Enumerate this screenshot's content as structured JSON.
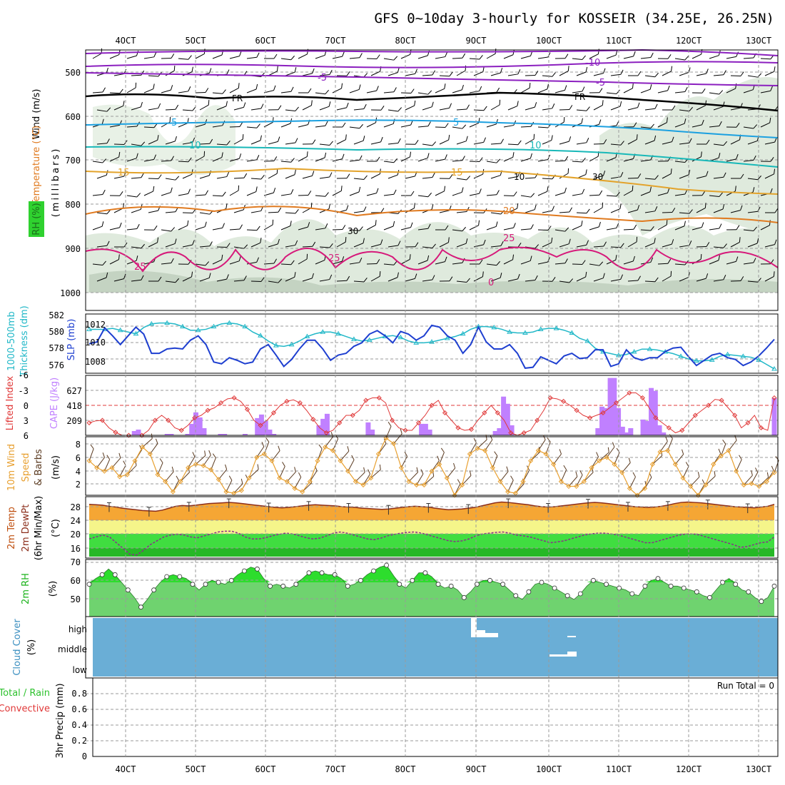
{
  "title": "GFS 0~10day 3-hourly for KOSSEIR (34.25E, 26.25N)",
  "date_ticks": [
    "4OCT",
    "5OCT",
    "6OCT",
    "7OCT",
    "8OCT",
    "9OCT",
    "10OCT",
    "11OCT",
    "12OCT",
    "13OCT"
  ],
  "colors": {
    "grid": "#9a9a9a",
    "thickness": "#22b8c8",
    "slp": "#1e3fd0",
    "lifted": "#e03838",
    "cape": "#c080ff",
    "wind": "#e8a030",
    "temp_fill": "#f5a634",
    "dew_fill": "#40dd40",
    "rh_fill": "#38d838",
    "cloud": "#6aaed6",
    "rh_label": "#1bb31b"
  },
  "panels": {
    "upper": {
      "label_wind": "Wind (m/s)",
      "label_temp": "Temperature (°C)",
      "label_rh": "RH (%)",
      "label_mb": "(millibars)",
      "yticks": [
        "500",
        "600",
        "700",
        "800",
        "900",
        "1000"
      ],
      "contour_labels": [
        "-10",
        "-5",
        "FR",
        "-5",
        "5",
        "10",
        "15",
        "20",
        "25",
        "0",
        "30",
        "10"
      ]
    },
    "slp": {
      "label_thick": "1000-500mb",
      "label_thick2": "Thickness (dm)",
      "label_slp": "SLP (mb)",
      "left_ticks": [
        "582",
        "580",
        "578",
        "576"
      ],
      "right_ticks": [
        "1012",
        "1010",
        "1008"
      ]
    },
    "cape": {
      "label_li": "Lifted Index",
      "label_cape": "CAPE (J/kg)",
      "li_ticks": [
        "-6",
        "-3",
        "0",
        "3",
        "6"
      ],
      "cape_ticks": [
        "627",
        "418",
        "209"
      ]
    },
    "wind10": {
      "label1": "10m Wind",
      "label2": "Speed",
      "label3": "& Barbs",
      "unit": "(m/s)",
      "ticks": [
        "8",
        "6",
        "4",
        "2"
      ]
    },
    "temp2m": {
      "label1": "2m Temp",
      "label2": "2m DewPt",
      "label3": "(6hr Min/Max)",
      "unit": "(°C)",
      "ticks": [
        "28",
        "24",
        "20",
        "16"
      ]
    },
    "rh2m": {
      "label": "2m RH",
      "unit": "(%)",
      "ticks": [
        "70",
        "60",
        "50"
      ]
    },
    "cloud": {
      "label": "Cloud Cover",
      "unit": "(%)",
      "levels": [
        "high",
        "middle",
        "low"
      ]
    },
    "precip": {
      "label1": "Total / Rain",
      "label2": "Convective",
      "label3": "3hr Precip (mm)",
      "run_total": "Run Total = 0",
      "ticks": [
        "0.8",
        "0.6",
        "0.4",
        "0.2",
        "0"
      ]
    }
  },
  "chart_data": [
    {
      "type": "line",
      "name": "upper-air",
      "x": [
        "4OCT",
        "5OCT",
        "6OCT",
        "7OCT",
        "8OCT",
        "9OCT",
        "10OCT",
        "11OCT",
        "12OCT",
        "13OCT"
      ],
      "ylabel": "millibars",
      "ylim": [
        450,
        1000
      ],
      "isotherms_c": [
        -10,
        -5,
        0,
        5,
        10,
        15,
        20,
        25
      ],
      "isotherm_pressure_mb": {
        "-10": 455,
        "-5": 490,
        "0": 565,
        "5": 615,
        "10": 670,
        "15": 735,
        "20": 810,
        "25": 905
      }
    },
    {
      "type": "line",
      "name": "slp-thickness",
      "series": [
        {
          "name": "1000-500mb Thickness (dm)",
          "ylim": [
            575.5,
            582
          ],
          "values": [
            580.3,
            580.3,
            580.3,
            580.4,
            580.2,
            580.0,
            579.8,
            580.5,
            580.9,
            581.0,
            581.0,
            580.9,
            580.6,
            580.2,
            580.2,
            580.3,
            580.6,
            580.9,
            581.0,
            580.9,
            580.6,
            580.0,
            579.6,
            579.0,
            578.5,
            578.4,
            578.6,
            579.0,
            579.5,
            579.8,
            580.0,
            580.0,
            579.8,
            579.5,
            579.2,
            579.0,
            579.1,
            579.3,
            579.5,
            579.6,
            579.4,
            579.0,
            578.8,
            578.8,
            578.9,
            579.1,
            579.3,
            579.5,
            579.8,
            580.3,
            580.6,
            580.6,
            580.5,
            580.3,
            580.0,
            579.9,
            579.9,
            580.0,
            580.3,
            580.4,
            580.4,
            580.2,
            579.9,
            579.3,
            579.0,
            578.2,
            577.8,
            577.6,
            577.4,
            577.5,
            577.8,
            578.1,
            578.1,
            578.0,
            577.8,
            577.6,
            577.3,
            577.0,
            576.8,
            576.8,
            576.9,
            577.3,
            577.5,
            577.4,
            577.3,
            577.2,
            576.9,
            576.4,
            575.9
          ]
        },
        {
          "name": "SLP (mb)",
          "ylim": [
            1006.8,
            1013.5
          ],
          "values": [
            1010.1,
            1010.3,
            1011.9,
            1011.0,
            1010.0,
            1011.0,
            1012.0,
            1011.2,
            1009.0,
            1009.0,
            1009.5,
            1009.6,
            1009.5,
            1010.5,
            1011.0,
            1010.0,
            1008.0,
            1007.8,
            1008.5,
            1008.2,
            1007.8,
            1008.0,
            1009.5,
            1010.0,
            1008.8,
            1007.5,
            1008.3,
            1009.5,
            1010.5,
            1010.5,
            1009.5,
            1008.2,
            1008.8,
            1009.0,
            1009.8,
            1010.2,
            1011.2,
            1011.6,
            1011.0,
            1010.2,
            1011.5,
            1011.2,
            1010.5,
            1011.0,
            1012.2,
            1012.0,
            1011.0,
            1010.5,
            1009.0,
            1010.0,
            1012.0,
            1010.3,
            1009.5,
            1009.5,
            1010.0,
            1009.0,
            1007.3,
            1007.4,
            1008.6,
            1008.2,
            1007.8,
            1008.7,
            1009.0,
            1008.4,
            1008.5,
            1009.4,
            1009.4,
            1007.5,
            1007.8,
            1009.4,
            1008.5,
            1008.2,
            1008.5,
            1008.5,
            1009.2,
            1009.6,
            1009.7,
            1008.6,
            1007.6,
            1008.2,
            1008.8,
            1009.0,
            1008.5,
            1008.3,
            1007.6,
            1008.0,
            1008.7,
            1009.6,
            1010.6
          ]
        }
      ]
    },
    {
      "type": "bar",
      "name": "lifted-index-cape",
      "series": [
        {
          "name": "Lifted Index",
          "ylim": [
            6,
            -6
          ],
          "values": [
            3.5,
            3.1,
            3.0,
            4.5,
            5.4,
            6.0,
            6.0,
            6.0,
            6.0,
            5.0,
            3.0,
            2.0,
            3.0,
            4.5,
            5.0,
            4.0,
            2.5,
            2.0,
            1.0,
            0.5,
            -0.5,
            -1.3,
            -1.5,
            -0.8,
            0.8,
            3.0,
            4.0,
            3.0,
            1.5,
            0.0,
            -0.8,
            -1.1,
            -0.5,
            1.0,
            2.8,
            4.5,
            5.5,
            5.0,
            3.5,
            2.0,
            2.0,
            1.0,
            -1.0,
            -1.5,
            -1.5,
            -0.5,
            3.0,
            4.5,
            5.0,
            5.0,
            3.5,
            2.0,
            0.0,
            -1.0,
            1.5,
            3.0,
            4.5,
            5.0,
            4.8,
            3.0,
            1.5,
            0.0,
            1.5,
            3.0,
            5.5,
            6.0,
            5.5,
            5.0,
            3.0,
            1.0,
            -1.5,
            -1.3,
            -0.8,
            0.0,
            1.0,
            2.0,
            2.5,
            2.0,
            1.5,
            0.5,
            -0.5,
            -1.5,
            -2.5,
            -2.5,
            -1.5,
            0.5,
            2.5,
            3.5,
            4.5,
            5.5,
            5.0,
            3.5,
            2.0,
            1.0,
            0.0,
            -1.2,
            -1.0,
            0.5,
            2.0,
            4.5,
            3.5,
            2.0,
            4.5,
            5.0,
            -1.5
          ]
        },
        {
          "name": "CAPE (J/kg)",
          "ylim": [
            0,
            836
          ],
          "values": [
            0,
            0,
            0,
            0,
            0,
            0,
            0,
            0,
            0,
            0,
            0,
            60,
            80,
            0,
            0,
            0,
            0,
            0,
            0,
            20,
            20,
            0,
            0,
            0,
            20,
            160,
            320,
            250,
            100,
            0,
            0,
            0,
            20,
            20,
            0,
            0,
            0,
            0,
            20,
            0,
            0,
            240,
            290,
            200,
            80,
            20,
            0,
            0,
            0,
            0,
            0,
            0,
            0,
            0,
            0,
            0,
            140,
            230,
            300,
            0,
            0,
            0,
            0,
            0,
            0,
            0,
            0,
            0,
            180,
            80,
            0,
            0,
            0,
            0,
            0,
            0,
            0,
            0,
            0,
            0,
            0,
            160,
            160,
            80,
            0,
            0,
            0,
            0,
            0,
            0,
            0,
            0,
            0,
            0,
            0,
            0,
            0,
            0,
            0,
            60,
            100,
            540,
            440,
            140,
            0,
            0,
            0,
            0,
            0,
            0,
            0,
            0,
            0,
            0,
            0,
            0,
            0,
            0,
            0,
            0,
            0,
            0,
            0,
            0,
            100,
            400,
            380,
            800,
            800,
            380,
            120,
            40,
            100,
            0,
            0,
            220,
            200,
            660,
            620,
            140,
            40,
            0,
            0,
            0,
            0,
            0,
            0,
            0,
            0,
            0,
            0,
            0,
            0,
            0,
            0,
            0,
            0,
            0,
            0,
            0,
            0,
            0,
            0,
            0,
            0,
            0,
            0,
            520
          ]
        }
      ]
    },
    {
      "type": "line",
      "name": "10m-wind-speed",
      "ylim": [
        0.5,
        9
      ],
      "ylabel": "m/s",
      "values": [
        5.5,
        4.5,
        4.0,
        4.5,
        3.2,
        3.5,
        5.5,
        7.5,
        6.5,
        3.5,
        2.5,
        1.0,
        2.5,
        4.5,
        5.0,
        4.8,
        4.2,
        2.8,
        1.0,
        0.8,
        1.2,
        3.0,
        6.0,
        6.5,
        5.5,
        3.0,
        2.5,
        1.5,
        1.0,
        2.5,
        5.5,
        7.5,
        7.0,
        5.5,
        4.0,
        2.5,
        2.0,
        3.0,
        6.5,
        8.8,
        8.0,
        4.5,
        2.5,
        2.0,
        2.0,
        4.0,
        5.0,
        3.0,
        0.5,
        2.0,
        6.5,
        7.3,
        7.0,
        4.5,
        2.5,
        1.0,
        0.8,
        2.5,
        5.5,
        7.0,
        6.5,
        5.0,
        2.5,
        1.8,
        1.8,
        2.5,
        4.5,
        5.5,
        6.0,
        5.0,
        3.8,
        1.5,
        0.5,
        1.5,
        5.0,
        6.8,
        7.0,
        5.0,
        3.0,
        1.8,
        0.5,
        2.0,
        5.0,
        6.2,
        7.0,
        4.0,
        2.0,
        2.2,
        1.8,
        2.5,
        3.8
      ]
    },
    {
      "type": "area",
      "name": "2m-temp-dewpoint",
      "ylim": [
        14,
        30
      ],
      "ylabel": "°C",
      "series": [
        {
          "name": "2m Temp",
          "values": [
            28.0,
            27.9,
            27.8,
            27.5,
            27.3,
            27.0,
            26.8,
            26.6,
            26.4,
            26.3,
            26.2,
            26.5,
            27.0,
            27.5,
            27.7,
            27.6,
            27.8,
            28.0,
            28.2,
            28.3,
            28.4,
            28.5,
            28.4,
            28.2,
            28.0,
            27.8,
            27.6,
            27.4,
            27.2,
            27.1,
            27.2,
            27.4,
            27.6,
            27.8,
            27.9,
            27.8,
            27.7,
            27.6,
            27.4,
            27.3,
            27.2,
            27.0,
            26.9,
            26.8,
            26.7,
            26.8,
            27.0,
            27.2,
            27.4,
            27.5,
            27.4,
            27.3,
            27.0,
            26.8,
            26.6,
            26.7,
            26.8,
            27.0,
            27.2,
            27.6,
            28.0,
            28.4,
            28.6,
            28.5,
            28.3,
            28.1,
            27.9,
            27.6,
            27.4,
            27.3,
            27.4,
            27.6,
            27.8,
            28.0,
            28.2,
            28.4,
            28.5,
            28.4,
            28.2,
            28.0,
            27.8,
            27.6,
            27.4,
            27.3,
            27.2,
            27.3,
            27.5,
            27.8,
            28.2,
            28.5,
            28.6,
            28.5,
            28.4,
            28.2,
            28.0,
            27.8,
            27.6,
            27.4,
            27.3,
            27.2,
            27.1,
            27.3,
            27.5,
            28.0
          ]
        },
        {
          "name": "2m DewPt",
          "values": [
            19.0,
            19.5,
            20.0,
            19.5,
            18.0,
            16.5,
            15.0,
            14.8,
            16.0,
            17.5,
            18.5,
            19.5,
            20.0,
            20.2,
            20.0,
            19.5,
            19.3,
            19.8,
            20.3,
            20.8,
            21.0,
            21.0,
            20.5,
            19.5,
            19.0,
            19.0,
            19.3,
            19.8,
            20.2,
            20.5,
            20.3,
            19.8,
            19.3,
            19.0,
            19.2,
            19.8,
            20.5,
            20.8,
            20.5,
            20.0,
            19.5,
            19.0,
            18.8,
            19.2,
            19.8,
            20.2,
            20.5,
            20.7,
            20.8,
            20.5,
            20.0,
            19.5,
            19.0,
            18.5,
            18.3,
            18.5,
            19.0,
            19.8,
            20.3,
            20.5,
            20.7,
            20.8,
            20.5,
            20.0,
            19.8,
            19.5,
            19.0,
            18.5,
            18.0,
            18.2,
            18.5,
            19.0,
            19.5,
            20.0,
            20.3,
            20.5,
            20.5,
            20.3,
            20.0,
            19.5,
            19.0,
            18.5,
            18.0,
            18.0,
            18.5,
            19.0,
            19.5,
            20.0,
            20.3,
            20.3,
            20.0,
            19.5,
            19.0,
            18.5,
            18.0,
            17.5,
            16.8,
            17.0,
            17.5,
            18.0,
            18.2,
            19.5
          ]
        }
      ]
    },
    {
      "type": "area",
      "name": "2m-rh",
      "ylim": [
        42,
        72
      ],
      "ylabel": "%",
      "values": [
        59,
        62,
        64,
        67,
        64,
        60,
        56,
        52,
        47,
        51,
        56,
        60,
        63,
        64,
        63,
        62,
        59,
        56,
        59,
        61,
        60,
        59,
        61,
        64,
        66,
        68,
        67,
        62,
        58,
        59,
        58,
        57,
        59,
        62,
        65,
        66,
        65,
        64,
        64,
        62,
        58,
        59,
        61,
        64,
        66,
        68,
        69,
        64,
        59,
        57,
        61,
        65,
        65,
        63,
        59,
        57,
        58,
        56,
        52,
        55,
        59,
        61,
        61,
        60,
        59,
        56,
        53,
        51,
        55,
        59,
        60,
        59,
        57,
        55,
        53,
        51,
        54,
        58,
        61,
        60,
        59,
        58,
        57,
        56,
        54,
        53,
        58,
        61,
        62,
        60,
        58,
        58,
        57,
        56,
        55,
        53,
        52,
        56,
        60,
        62,
        59,
        56,
        55,
        52,
        50,
        52,
        58
      ]
    },
    {
      "type": "heatmap",
      "name": "cloud-cover",
      "categories": [
        "high",
        "middle",
        "low"
      ],
      "values": {
        "high": "clear except around 9OCT",
        "middle": "clear except around 10OCT",
        "low": "clear"
      }
    },
    {
      "type": "bar",
      "name": "3hr-precip",
      "ylim": [
        0,
        1
      ],
      "ylabel": "3hr Precip (mm)",
      "values": [
        0
      ]
    }
  ]
}
